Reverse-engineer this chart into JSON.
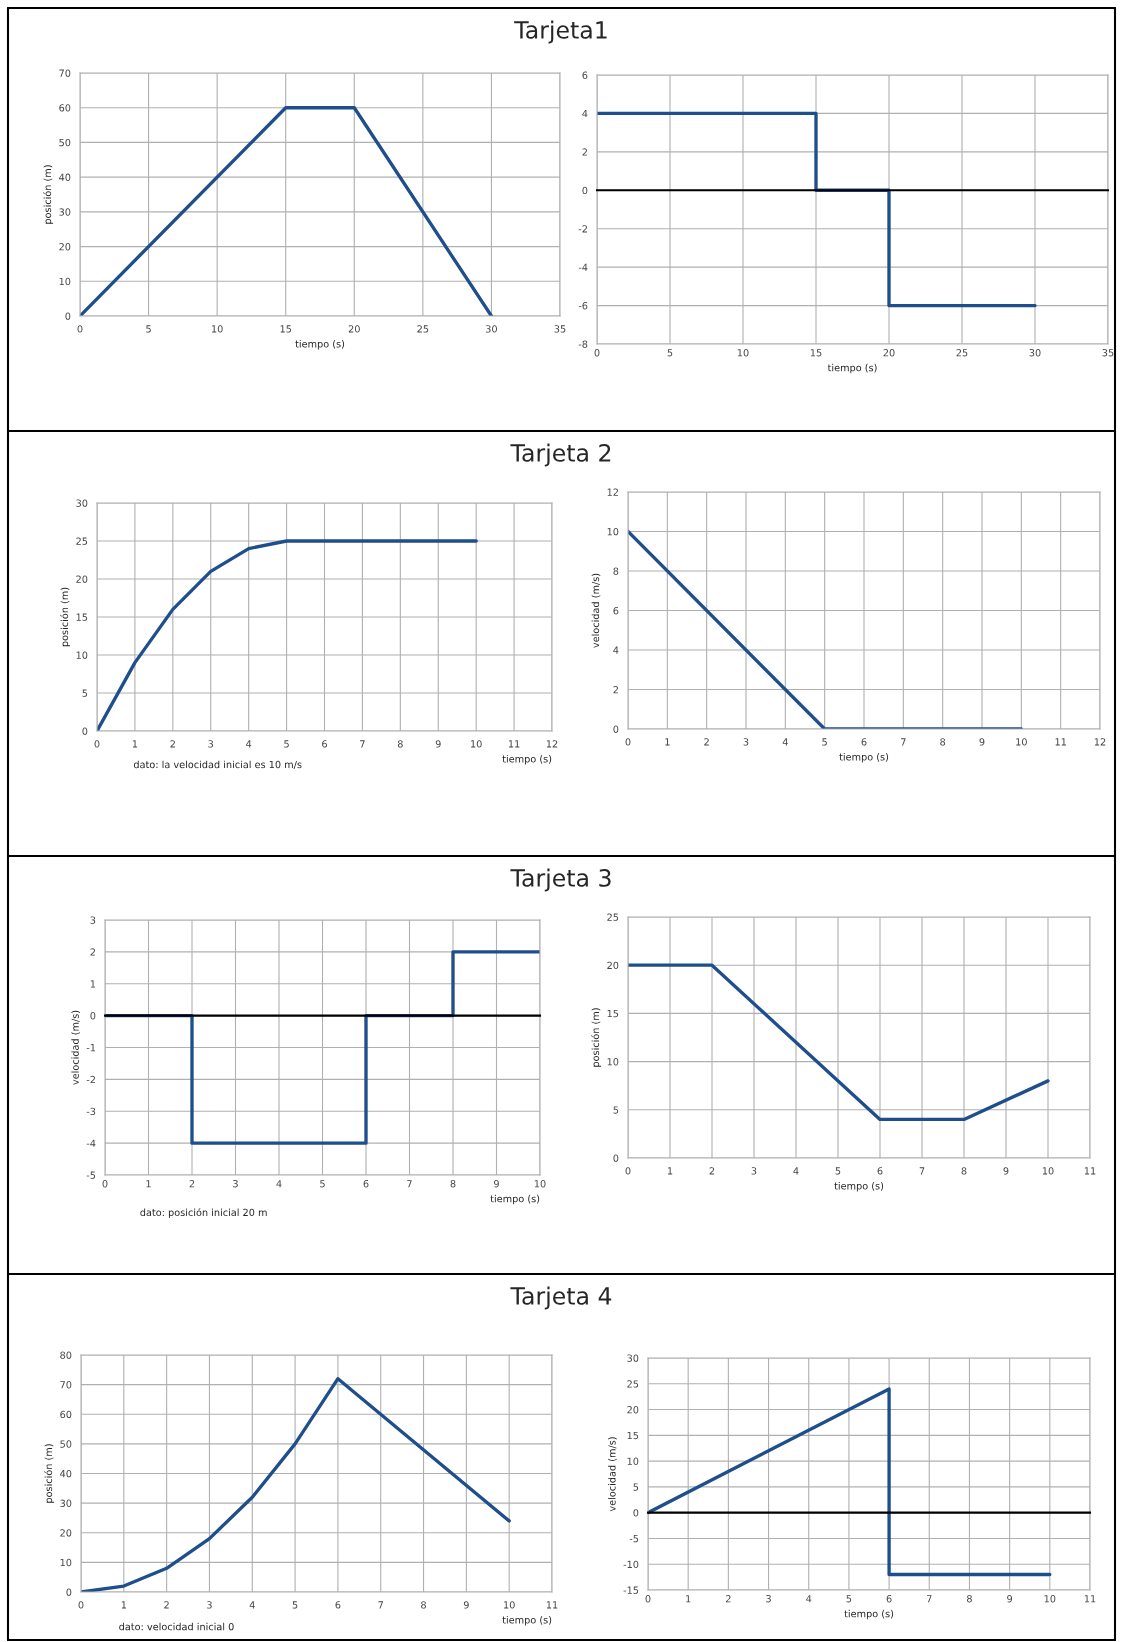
{
  "chart_data": [
    {
      "type": "line",
      "title": "Tarjeta1",
      "xlabel": "tiempo (s)",
      "ylabel": "posición (m)",
      "xlim": [
        0,
        35
      ],
      "xticks": [
        0,
        5,
        10,
        15,
        20,
        25,
        30,
        35
      ],
      "ylim": [
        0,
        70
      ],
      "yticks": [
        0,
        10,
        20,
        30,
        40,
        50,
        60,
        70
      ],
      "grid": true,
      "x": [
        0,
        15,
        20,
        30
      ],
      "series": [
        {
          "color": "#1f4e8c",
          "values": [
            0,
            60,
            60,
            0
          ]
        }
      ]
    },
    {
      "type": "line",
      "xlabel": "tiempo (s)",
      "xlim": [
        0,
        35
      ],
      "xticks": [
        0,
        5,
        10,
        15,
        20,
        25,
        30,
        35
      ],
      "ylim": [
        -8,
        6
      ],
      "yticks": [
        -8,
        -6,
        -4,
        -2,
        0,
        2,
        4,
        6
      ],
      "grid": true,
      "x": [
        0,
        15,
        15,
        20,
        20,
        30
      ],
      "series": [
        {
          "color": "#1f4e8c",
          "values": [
            4,
            4,
            0,
            0,
            -6,
            -6
          ]
        }
      ]
    },
    {
      "type": "line",
      "title": "Tarjeta 2",
      "xlabel": "tiempo (s)",
      "ylabel": "posición (m)",
      "annotations": [
        "dato: la velocidad inicial es 10 m/s"
      ],
      "xlim": [
        0,
        12
      ],
      "xticks": [
        0,
        1,
        2,
        3,
        4,
        5,
        6,
        7,
        8,
        9,
        10,
        11,
        12
      ],
      "ylim": [
        0,
        30
      ],
      "yticks": [
        0,
        5,
        10,
        15,
        20,
        25,
        30
      ],
      "grid": true,
      "x": [
        0,
        1,
        2,
        3,
        4,
        5,
        10
      ],
      "series": [
        {
          "color": "#1f4e8c",
          "values": [
            0,
            9,
            16,
            21,
            24,
            25,
            25
          ]
        }
      ]
    },
    {
      "type": "line",
      "xlabel": "tiempo (s)",
      "ylabel": "velocidad (m/s)",
      "xlim": [
        0,
        12
      ],
      "xticks": [
        0,
        1,
        2,
        3,
        4,
        5,
        6,
        7,
        8,
        9,
        10,
        11,
        12
      ],
      "ylim": [
        0,
        12
      ],
      "yticks": [
        0,
        2,
        4,
        6,
        8,
        10,
        12
      ],
      "grid": true,
      "x": [
        0,
        5,
        10
      ],
      "series": [
        {
          "color": "#1f4e8c",
          "values": [
            10,
            0,
            0
          ]
        }
      ]
    },
    {
      "type": "line",
      "title": "Tarjeta 3",
      "xlabel": "tiempo (s)",
      "ylabel": "velocidad (m/s)",
      "annotations": [
        "dato: posición inicial 20 m"
      ],
      "xlim": [
        0,
        10
      ],
      "xticks": [
        0,
        1,
        2,
        3,
        4,
        5,
        6,
        7,
        8,
        9,
        10
      ],
      "ylim": [
        -5,
        3
      ],
      "yticks": [
        -5,
        -4,
        -3,
        -2,
        -1,
        0,
        1,
        2,
        3
      ],
      "grid": true,
      "x": [
        0,
        2,
        2,
        6,
        6,
        8,
        8,
        10
      ],
      "series": [
        {
          "color": "#1f4e8c",
          "values": [
            0,
            0,
            -4,
            -4,
            0,
            0,
            2,
            2
          ]
        }
      ]
    },
    {
      "type": "line",
      "xlabel": "tiempo (s)",
      "ylabel": "posición (m)",
      "xlim": [
        0,
        11
      ],
      "xticks": [
        0,
        1,
        2,
        3,
        4,
        5,
        6,
        7,
        8,
        9,
        10,
        11
      ],
      "ylim": [
        0,
        25
      ],
      "yticks": [
        0,
        5,
        10,
        15,
        20,
        25
      ],
      "grid": true,
      "x": [
        0,
        2,
        6,
        8,
        10
      ],
      "series": [
        {
          "color": "#1f4e8c",
          "values": [
            20,
            20,
            4,
            4,
            8
          ]
        }
      ]
    },
    {
      "type": "line",
      "title": "Tarjeta 4",
      "xlabel": "tiempo (s)",
      "ylabel": "posición (m)",
      "annotations": [
        "dato: velocidad inicial 0"
      ],
      "xlim": [
        0,
        11
      ],
      "xticks": [
        0,
        1,
        2,
        3,
        4,
        5,
        6,
        7,
        8,
        9,
        10,
        11
      ],
      "ylim": [
        0,
        80
      ],
      "yticks": [
        0,
        10,
        20,
        30,
        40,
        50,
        60,
        70,
        80
      ],
      "grid": true,
      "x": [
        0,
        1,
        2,
        3,
        4,
        5,
        6,
        10
      ],
      "series": [
        {
          "color": "#1f4e8c",
          "values": [
            0,
            2,
            8,
            18,
            32,
            50,
            72,
            24
          ]
        }
      ]
    },
    {
      "type": "line",
      "xlabel": "tiempo (s)",
      "ylabel": "velocidad (m/s)",
      "xlim": [
        0,
        11
      ],
      "xticks": [
        0,
        1,
        2,
        3,
        4,
        5,
        6,
        7,
        8,
        9,
        10,
        11
      ],
      "ylim": [
        -15,
        30
      ],
      "yticks": [
        -15,
        -10,
        -5,
        0,
        5,
        10,
        15,
        20,
        25,
        30
      ],
      "grid": true,
      "x": [
        0,
        6,
        6,
        10
      ],
      "series": [
        {
          "color": "#1f4e8c",
          "values": [
            0,
            24,
            -12,
            -12
          ]
        }
      ]
    }
  ]
}
